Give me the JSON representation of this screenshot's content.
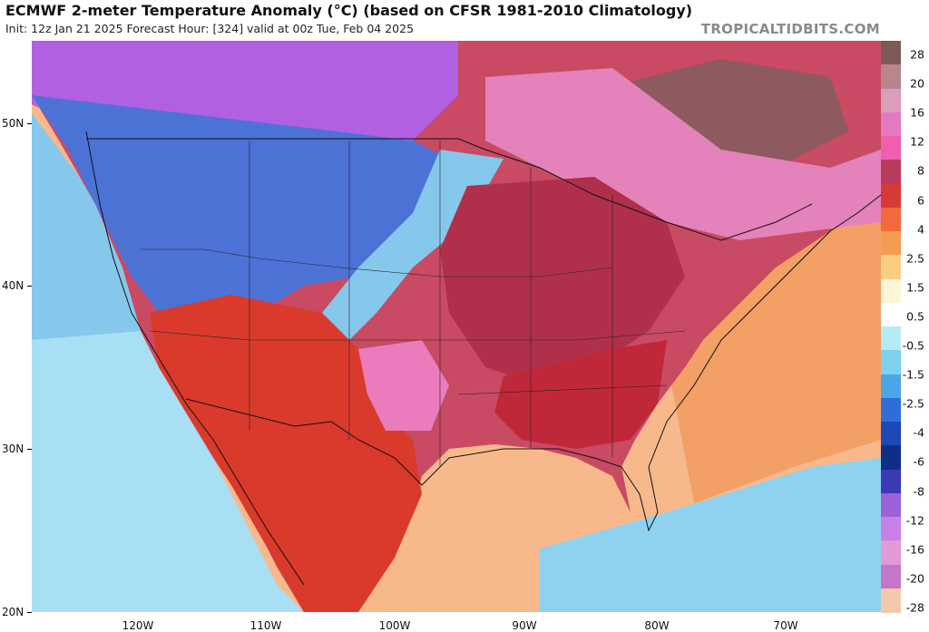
{
  "header": {
    "title": "ECMWF 2-meter Temperature Anomaly (°C) (based on CFSR 1981-2010 Climatology)",
    "subtitle": "Init: 12z Jan 21 2025   Forecast Hour: [324]   valid at 00z Tue, Feb 04 2025",
    "brand": "TROPICALTIDBITS.COM"
  },
  "map": {
    "latitude_labels": [
      "50N",
      "40N",
      "30N",
      "20N"
    ],
    "longitude_labels": [
      "120W",
      "110W",
      "100W",
      "90W",
      "80W",
      "70W"
    ],
    "colors": {
      "water": "#f7b98c",
      "cold_west": "#4d72d6",
      "very_cold_north": "#b260e2",
      "cool_plains": "#86c8ec",
      "warm_east": "#c94a63",
      "warm_core": "#b0304b",
      "hot_south": "#d93a2b",
      "pink_core": "#ea7cbd",
      "pink_canada": "#e482bb",
      "brown_quebec": "#8c5a5f",
      "orange_atlantic": "#f2a065",
      "cool_pacific": "#a9dff4",
      "cool_caribbean": "#8fd2ef"
    }
  },
  "colorbar": {
    "labels": [
      "28",
      "20",
      "16",
      "12",
      "8",
      "6",
      "4",
      "2.5",
      "1.5",
      "0.5",
      "-0.5",
      "-1.5",
      "-2.5",
      "-4",
      "-6",
      "-8",
      "-12",
      "-16",
      "-20",
      "-28"
    ],
    "colors": [
      "#7d5a55",
      "#b7858a",
      "#d89eba",
      "#e37ac1",
      "#ef5fae",
      "#b83b5b",
      "#d53a34",
      "#ef6a3c",
      "#f39c52",
      "#f8cf80",
      "#fcf5d6",
      "#ffffff",
      "#b5ecf4",
      "#7ed2ed",
      "#4aa6e5",
      "#2f6ed7",
      "#1d49b6",
      "#0f2e87",
      "#3b3ab4",
      "#9b62d7",
      "#c87fe8",
      "#e29ad7",
      "#c576c8",
      "#f4c9a9"
    ]
  }
}
